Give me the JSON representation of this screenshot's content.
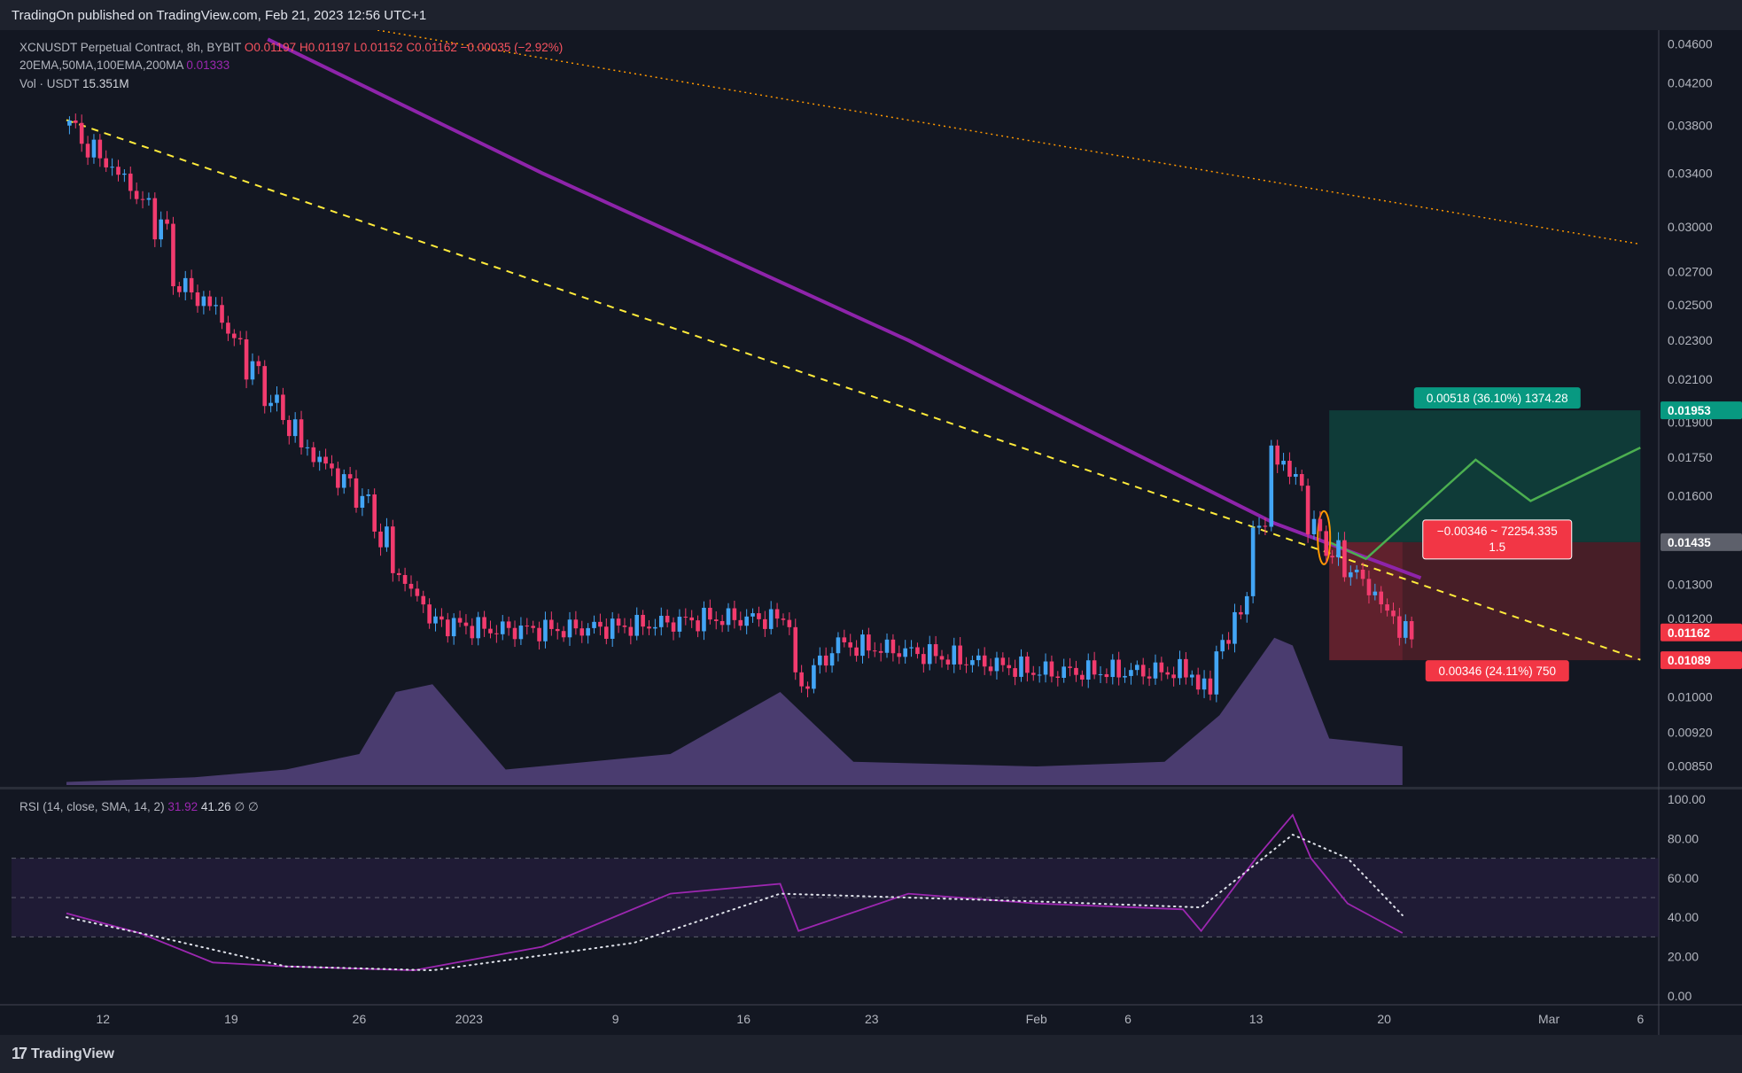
{
  "header": {
    "published": "TradingOn published on TradingView.com, Feb 21, 2023 12:56 UTC+1"
  },
  "footer": {
    "brand": "TradingView",
    "logo": "17"
  },
  "legend": {
    "symbol": "XCNUSDT Perpetual Contract, 8h, BYBIT",
    "open": "O0.01197",
    "high": "H0.01197",
    "low": "L0.01152",
    "close": "C0.01162",
    "change": "−0.00035 (−2.92%)",
    "ma_label": "20EMA,50MA,100EMA,200MA",
    "ma_value": "0.01333",
    "vol_label": "Vol · USDT",
    "vol_value": "15.351M",
    "rsi_label": "RSI (14, close, SMA, 14, 2)",
    "rsi_value": "31.92",
    "rsi_sma": "41.26",
    "rsi_extra": "∅  ∅"
  },
  "position": {
    "target_label": "0.00518 (36.10%) 1374.28",
    "stop_label": "0.00346 (24.11%) 750",
    "center_label_line1": "−0.00346 ~ 72254.335",
    "center_label_line2": "1.5"
  },
  "price_tags": {
    "target": "0.01953",
    "entry": "0.01435",
    "current": "0.01162",
    "stop": "0.01089"
  },
  "colors": {
    "background": "#131722",
    "up": "#42a5f5",
    "down": "#f23b6e",
    "ma200": "#8e24aa",
    "target_zone": "#0f3d3a",
    "stop_zone": "#4a1f28",
    "trend_dashed": "#ffeb3b",
    "trend_dotted": "#ff9800"
  },
  "chart_data": {
    "type": "candlestick",
    "timeframe": "8h",
    "scale": "log",
    "y_ticks": [
      "0.04600",
      "0.04200",
      "0.03800",
      "0.03400",
      "0.03000",
      "0.02700",
      "0.02500",
      "0.02300",
      "0.02100",
      "0.01900",
      "0.01750",
      "0.01600",
      "0.01300",
      "0.01200",
      "0.01000",
      "0.00920",
      "0.00850"
    ],
    "x_ticks": [
      "12",
      "19",
      "26",
      "2023",
      "9",
      "16",
      "23",
      "Feb",
      "6",
      "13",
      "20",
      "Mar",
      "6"
    ],
    "x_tick_dates": [
      "2022-12-12",
      "2022-12-19",
      "2022-12-26",
      "2023-01-01",
      "2023-01-09",
      "2023-01-16",
      "2023-01-23",
      "2023-02-01",
      "2023-02-06",
      "2023-02-13",
      "2023-02-20",
      "2023-03-01",
      "2023-03-06"
    ],
    "ylim": [
      0.0081,
      0.0475
    ],
    "close_path": [
      [
        "2022-12-10",
        0.038
      ],
      [
        "2022-12-11",
        0.0362
      ],
      [
        "2022-12-13",
        0.0335
      ],
      [
        "2022-12-15",
        0.03
      ],
      [
        "2022-12-16",
        0.0262
      ],
      [
        "2022-12-18",
        0.0247
      ],
      [
        "2022-12-19",
        0.023
      ],
      [
        "2022-12-21",
        0.02
      ],
      [
        "2022-12-23",
        0.0178
      ],
      [
        "2022-12-26",
        0.0159
      ],
      [
        "2022-12-28",
        0.0133
      ],
      [
        "2022-12-30",
        0.0119
      ],
      [
        "2023-01-02",
        0.0117
      ],
      [
        "2023-01-06",
        0.0117
      ],
      [
        "2023-01-10",
        0.0118
      ],
      [
        "2023-01-14",
        0.012
      ],
      [
        "2023-01-18",
        0.012
      ],
      [
        "2023-01-19",
        0.0103
      ],
      [
        "2023-01-21",
        0.0113
      ],
      [
        "2023-01-25",
        0.0111
      ],
      [
        "2023-02-01",
        0.0106
      ],
      [
        "2023-02-06",
        0.0106
      ],
      [
        "2023-02-09",
        0.0106
      ],
      [
        "2023-02-10",
        0.0102
      ],
      [
        "2023-02-12",
        0.0123
      ],
      [
        "2023-02-13",
        0.015
      ],
      [
        "2023-02-14",
        0.0175
      ],
      [
        "2023-02-15",
        0.0166
      ],
      [
        "2023-02-16",
        0.0148
      ],
      [
        "2023-02-17",
        0.014
      ],
      [
        "2023-02-19",
        0.0129
      ],
      [
        "2023-02-20",
        0.0122
      ],
      [
        "2023-02-21",
        0.0116
      ]
    ],
    "volume_path": [
      [
        "2022-12-10",
        0.02
      ],
      [
        "2022-12-17",
        0.05
      ],
      [
        "2022-12-22",
        0.1
      ],
      [
        "2022-12-26",
        0.2
      ],
      [
        "2022-12-28",
        0.6
      ],
      [
        "2022-12-30",
        0.65
      ],
      [
        "2023-01-03",
        0.1
      ],
      [
        "2023-01-12",
        0.2
      ],
      [
        "2023-01-18",
        0.6
      ],
      [
        "2023-01-22",
        0.15
      ],
      [
        "2023-02-01",
        0.12
      ],
      [
        "2023-02-08",
        0.15
      ],
      [
        "2023-02-11",
        0.45
      ],
      [
        "2023-02-14",
        0.95
      ],
      [
        "2023-02-15",
        0.9
      ],
      [
        "2023-02-17",
        0.3
      ],
      [
        "2023-02-21",
        0.25
      ]
    ],
    "ma200": [
      [
        "2022-12-21",
        0.0465
      ],
      [
        "2023-01-05",
        0.034
      ],
      [
        "2023-01-25",
        0.023
      ],
      [
        "2023-02-14",
        0.015
      ],
      [
        "2023-02-22",
        0.0132
      ]
    ],
    "trend_dashed": [
      [
        "2022-12-10",
        0.0385
      ],
      [
        "2023-03-06",
        0.0109
      ]
    ],
    "trend_dotted": [
      [
        "2022-12-27",
        0.0475
      ],
      [
        "2023-03-06",
        0.0288
      ]
    ],
    "position": {
      "entry": 0.01435,
      "target": 0.01953,
      "stop": 0.01089,
      "start": "2023-02-17",
      "end": "2023-03-06"
    },
    "projection": [
      [
        "2023-02-17",
        0.01435
      ],
      [
        "2023-02-19",
        0.0138
      ],
      [
        "2023-02-25",
        0.0174
      ],
      [
        "2023-02-28",
        0.0158
      ],
      [
        "2023-03-06",
        0.0179
      ]
    ],
    "rsi": {
      "levels": [
        70,
        50,
        30
      ],
      "y_ticks": [
        "100.00",
        "80.00",
        "60.00",
        "40.00",
        "20.00",
        "0.00"
      ],
      "ylim": [
        0,
        100
      ],
      "rsi_path": [
        [
          "2022-12-10",
          42
        ],
        [
          "2022-12-14",
          32
        ],
        [
          "2022-12-18",
          17
        ],
        [
          "2022-12-22",
          15
        ],
        [
          "2022-12-29",
          13
        ],
        [
          "2023-01-05",
          25
        ],
        [
          "2023-01-12",
          52
        ],
        [
          "2023-01-18",
          57
        ],
        [
          "2023-01-19",
          33
        ],
        [
          "2023-01-25",
          52
        ],
        [
          "2023-02-01",
          47
        ],
        [
          "2023-02-09",
          44
        ],
        [
          "2023-02-10",
          33
        ],
        [
          "2023-02-13",
          70
        ],
        [
          "2023-02-15",
          92
        ],
        [
          "2023-02-16",
          70
        ],
        [
          "2023-02-18",
          47
        ],
        [
          "2023-02-21",
          32
        ]
      ],
      "sma_path": [
        [
          "2022-12-10",
          40
        ],
        [
          "2022-12-15",
          30
        ],
        [
          "2022-12-22",
          15
        ],
        [
          "2022-12-30",
          13
        ],
        [
          "2023-01-10",
          27
        ],
        [
          "2023-01-18",
          52
        ],
        [
          "2023-02-01",
          48
        ],
        [
          "2023-02-10",
          45
        ],
        [
          "2023-02-15",
          82
        ],
        [
          "2023-02-18",
          70
        ],
        [
          "2023-02-21",
          41
        ]
      ]
    }
  }
}
